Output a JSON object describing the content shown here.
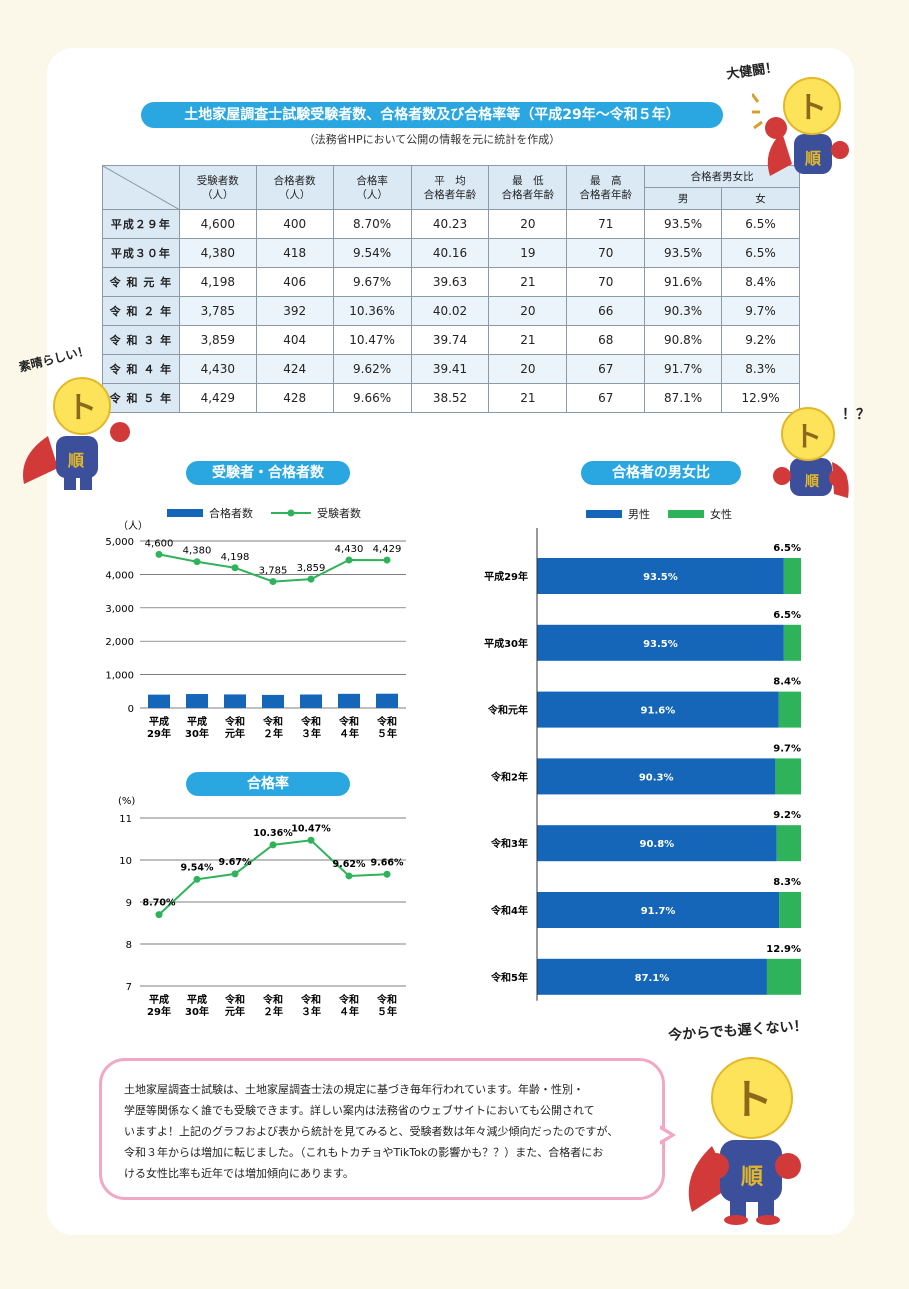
{
  "title": "土地家屋調査士試験受験者数、合格者数及び合格率等（平成29年～令和５年）",
  "subtitle": "（法務省HPにおいて公開の情報を元に統計を作成）",
  "table": {
    "headers": [
      "受験者数\n（人）",
      "合格者数\n（人）",
      "合格率\n（人）",
      "平　均\n合格者年齢",
      "最　低\n合格者年齢",
      "最　高\n合格者年齢"
    ],
    "gender_header": "合格者男女比",
    "gender_sub": [
      "男",
      "女"
    ],
    "rows": [
      [
        "平成２９年",
        "4,600",
        "400",
        "8.70%",
        "40.23",
        "20",
        "71",
        "93.5%",
        "6.5%"
      ],
      [
        "平成３０年",
        "4,380",
        "418",
        "9.54%",
        "40.16",
        "19",
        "70",
        "93.5%",
        "6.5%"
      ],
      [
        "令 和 元 年",
        "4,198",
        "406",
        "9.67%",
        "39.63",
        "21",
        "70",
        "91.6%",
        "8.4%"
      ],
      [
        "令 和 ２ 年",
        "3,785",
        "392",
        "10.36%",
        "40.02",
        "20",
        "66",
        "90.3%",
        "9.7%"
      ],
      [
        "令 和 ３ 年",
        "3,859",
        "404",
        "10.47%",
        "39.74",
        "21",
        "68",
        "90.8%",
        "9.2%"
      ],
      [
        "令 和 ４ 年",
        "4,430",
        "424",
        "9.62%",
        "39.41",
        "20",
        "67",
        "91.7%",
        "8.3%"
      ],
      [
        "令 和 ５ 年",
        "4,429",
        "428",
        "9.66%",
        "38.52",
        "21",
        "67",
        "87.1%",
        "12.9%"
      ]
    ]
  },
  "chart_data": [
    {
      "type": "bar",
      "title": "受験者・合格者数",
      "ylabel": "（人）",
      "ylim": [
        0,
        5000
      ],
      "yticks": [
        "0",
        "1,000",
        "2,000",
        "3,000",
        "4,000",
        "5,000"
      ],
      "categories": [
        "平成\n29年",
        "平成\n30年",
        "令和\n元年",
        "令和\n２年",
        "令和\n３年",
        "令和\n４年",
        "令和\n５年"
      ],
      "series": [
        {
          "name": "合格者数",
          "kind": "bar",
          "color": "#1565b8",
          "values": [
            400,
            418,
            406,
            392,
            404,
            424,
            428
          ]
        },
        {
          "name": "受験者数",
          "kind": "line",
          "color": "#2fb35a",
          "values": [
            4600,
            4380,
            4198,
            3785,
            3859,
            4430,
            4429
          ],
          "labels": [
            "4,600",
            "4,380",
            "4,198",
            "3,785",
            "3,859",
            "4,430",
            "4,429"
          ]
        }
      ],
      "grid": true
    },
    {
      "type": "line",
      "title": "合格率",
      "ylabel": "(%)",
      "ylim": [
        7,
        11
      ],
      "yticks": [
        "7",
        "8",
        "9",
        "10",
        "11"
      ],
      "categories": [
        "平成\n29年",
        "平成\n30年",
        "令和\n元年",
        "令和\n２年",
        "令和\n３年",
        "令和\n４年",
        "令和\n５年"
      ],
      "series": [
        {
          "name": "合格率",
          "color": "#2fb35a",
          "values": [
            8.7,
            9.54,
            9.67,
            10.36,
            10.47,
            9.62,
            9.66
          ],
          "labels": [
            "8.70%",
            "9.54%",
            "9.67%",
            "10.36%",
            "10.47%",
            "9.62%",
            "9.66%"
          ]
        }
      ],
      "grid": true
    },
    {
      "type": "bar",
      "title": "合格者の男女比",
      "orientation": "horizontal-stacked",
      "categories": [
        "平成29年",
        "平成30年",
        "令和元年",
        "令和2年",
        "令和3年",
        "令和4年",
        "令和5年"
      ],
      "series": [
        {
          "name": "男性",
          "color": "#1565b8",
          "values": [
            93.5,
            93.5,
            91.6,
            90.3,
            90.8,
            91.7,
            87.1
          ],
          "labels": [
            "93.5%",
            "93.5%",
            "91.6%",
            "90.3%",
            "90.8%",
            "91.7%",
            "87.1%"
          ]
        },
        {
          "name": "女性",
          "color": "#2fb35a",
          "values": [
            6.5,
            6.5,
            8.4,
            9.7,
            9.2,
            8.3,
            12.9
          ],
          "labels": [
            "6.5%",
            "6.5%",
            "8.4%",
            "9.7%",
            "9.2%",
            "8.3%",
            "12.9%"
          ]
        }
      ]
    }
  ],
  "bubble_lines": [
    "土地家屋調査士試験は、土地家屋調査士法の規定に基づき毎年行われています。年齢・性別・",
    "学歴等関係なく誰でも受験できます。詳しい案内は法務省のウェブサイトにおいても公開されて",
    "いますよ！上記のグラフおよび表から統計を見てみると、受験者数は年々減少傾向だったのですが、",
    "令和３年からは増加に転じました。（これもトカチョやTikTokの影響かも？？）また、合格者にお",
    "ける女性比率も近年では増加傾向にあります。"
  ],
  "shouts": {
    "top_right": "大健闘！",
    "left": "素晴らしい！",
    "right": "！？",
    "bottom": "今からでも遅くない！"
  },
  "mascot_mark": "ト",
  "mascot_chest": "順"
}
